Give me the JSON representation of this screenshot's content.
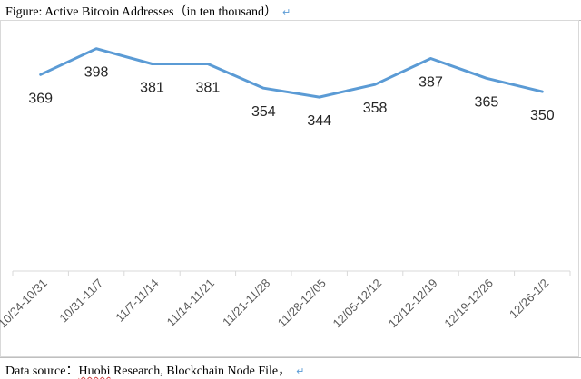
{
  "header": {
    "caption": "Figure:  Active Bitcoin Addresses（in ten thousand）",
    "return_mark": "↵"
  },
  "footer": {
    "prefix": "Data source：",
    "source_underlined": "Huobi",
    "source_rest": " Research, Blockchain Node File，",
    "return_mark": "↵"
  },
  "chart_data": {
    "type": "line",
    "title": "Active Bitcoin Addresses（in ten thousand）",
    "categories": [
      "10/24-10/31",
      "10/31-11/7",
      "11/7-11/14",
      "11/14-11/21",
      "11/21-11/28",
      "11/28-12/05",
      "12/05-12/12",
      "12/12-12/19",
      "12/19-12/26",
      "12/26-1/2"
    ],
    "series": [
      {
        "values": [
          369,
          398,
          381,
          381,
          354,
          344,
          358,
          387,
          365,
          350
        ]
      }
    ],
    "ylim": [
      150,
      430
    ],
    "grid": false,
    "legend": "none",
    "line_color": "#5b9bd5",
    "axis_color": "#d9d9d9"
  }
}
